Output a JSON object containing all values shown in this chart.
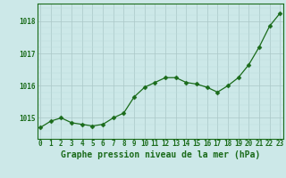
{
  "x": [
    0,
    1,
    2,
    3,
    4,
    5,
    6,
    7,
    8,
    9,
    10,
    11,
    12,
    13,
    14,
    15,
    16,
    17,
    18,
    19,
    20,
    21,
    22,
    23
  ],
  "y": [
    1014.7,
    1014.9,
    1015.0,
    1014.85,
    1014.8,
    1014.75,
    1014.8,
    1015.0,
    1015.15,
    1015.65,
    1015.95,
    1016.1,
    1016.25,
    1016.25,
    1016.1,
    1016.05,
    1015.95,
    1015.8,
    1016.0,
    1016.25,
    1016.65,
    1017.2,
    1017.85,
    1018.25
  ],
  "line_color": "#1a6b1a",
  "marker": "D",
  "marker_size": 2.5,
  "bg_color": "#cce8e8",
  "grid_color_major": "#aac8c8",
  "grid_color_minor": "#bbdddd",
  "title": "Graphe pression niveau de la mer (hPa)",
  "title_color": "#1a6b1a",
  "title_fontsize": 7,
  "xlabel_ticks": [
    0,
    1,
    2,
    3,
    4,
    5,
    6,
    7,
    8,
    9,
    10,
    11,
    12,
    13,
    14,
    15,
    16,
    17,
    18,
    19,
    20,
    21,
    22,
    23
  ],
  "ytick_labels": [
    1015,
    1016,
    1017,
    1018
  ],
  "ylim": [
    1014.35,
    1018.55
  ],
  "xlim": [
    -0.3,
    23.3
  ],
  "tick_color": "#1a6b1a",
  "tick_fontsize": 5.5,
  "spine_color": "#1a6b1a",
  "linewidth": 0.9
}
